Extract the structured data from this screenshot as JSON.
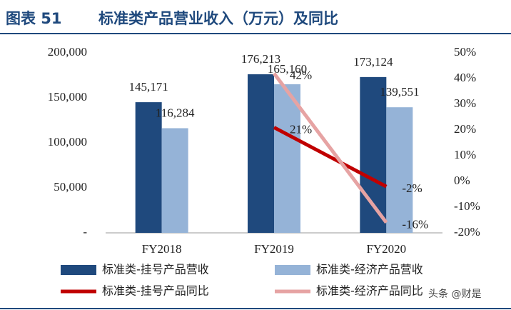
{
  "chart_data": {
    "type": "bar",
    "figure_label": "图表 51",
    "title": "标准类产品营业收入（万元）及同比",
    "categories": [
      "FY2018",
      "FY2019",
      "FY2020"
    ],
    "series": [
      {
        "name": "标准类-挂号产品营收",
        "type": "bar",
        "color": "#1f497d",
        "values": [
          145171,
          176213,
          173124
        ],
        "value_labels": [
          "145,171",
          "176,213",
          "173,124"
        ]
      },
      {
        "name": "标准类-经济产品营收",
        "type": "bar",
        "color": "#95b3d7",
        "values": [
          116284,
          165160,
          139551
        ],
        "value_labels": [
          "116,284",
          "165,160",
          "139,551"
        ]
      },
      {
        "name": "标准类-挂号产品同比",
        "type": "line",
        "axis": "y2",
        "color": "#c00000",
        "values": [
          null,
          21,
          -2
        ],
        "value_labels": [
          null,
          "21%",
          "-2%"
        ]
      },
      {
        "name": "标准类-经济产品同比",
        "type": "line",
        "axis": "y2",
        "color": "#e6a3a3",
        "values": [
          null,
          42,
          -16
        ],
        "value_labels": [
          null,
          "42%",
          "-16%"
        ]
      }
    ],
    "ylim": [
      0,
      200000
    ],
    "yticks": [
      {
        "value": 0,
        "label": "-"
      },
      {
        "value": 50000,
        "label": "50,000"
      },
      {
        "value": 100000,
        "label": "100,000"
      },
      {
        "value": 150000,
        "label": "150,000"
      },
      {
        "value": 200000,
        "label": "200,000"
      }
    ],
    "y2lim": [
      -20,
      50
    ],
    "y2ticks": [
      {
        "value": -20,
        "label": "-20%"
      },
      {
        "value": -10,
        "label": "-10%"
      },
      {
        "value": 0,
        "label": "0%"
      },
      {
        "value": 10,
        "label": "10%"
      },
      {
        "value": 20,
        "label": "20%"
      },
      {
        "value": 30,
        "label": "30%"
      },
      {
        "value": 40,
        "label": "40%"
      },
      {
        "value": 50,
        "label": "50%"
      }
    ],
    "watermark": "头条 @财是"
  }
}
